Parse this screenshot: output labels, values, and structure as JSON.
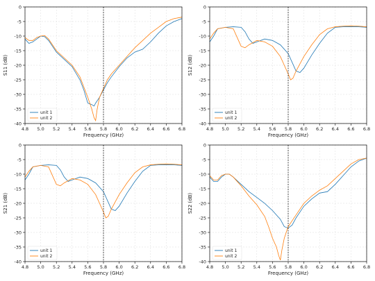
{
  "colors": {
    "unit1": "#1f77b4",
    "unit2": "#ff7f0e",
    "marker": "#000000"
  },
  "chart_data": [
    {
      "type": "line",
      "xlabel": "Frequency (GHz)",
      "ylabel": "S11 (dB)",
      "xlim": [
        4.8,
        6.8
      ],
      "ylim": [
        -40,
        0
      ],
      "xticks": [
        "4.8",
        "5.0",
        "5.2",
        "5.4",
        "5.6",
        "5.8",
        "6.0",
        "6.2",
        "6.4",
        "6.6",
        "6.8"
      ],
      "yticks": [
        "0",
        "-5",
        "-10",
        "-15",
        "-20",
        "-25",
        "-30",
        "-35",
        "-40"
      ],
      "grid": true,
      "legend": "bottom-left",
      "vline": 5.8,
      "series": [
        {
          "name": "unit 1",
          "x": [
            4.8,
            4.85,
            4.9,
            4.95,
            5.0,
            5.05,
            5.1,
            5.15,
            5.2,
            5.3,
            5.4,
            5.5,
            5.55,
            5.6,
            5.65,
            5.68,
            5.7,
            5.75,
            5.8,
            5.85,
            5.9,
            6.0,
            6.1,
            6.2,
            6.3,
            6.4,
            6.5,
            6.6,
            6.7,
            6.8
          ],
          "y": [
            -11,
            -12.5,
            -12,
            -11,
            -10,
            -10.2,
            -11.5,
            -13.5,
            -15.5,
            -18,
            -20.5,
            -25,
            -28.5,
            -33,
            -33.5,
            -34,
            -33,
            -31,
            -28.5,
            -26,
            -24,
            -20.5,
            -17.5,
            -15.5,
            -14.5,
            -12,
            -9,
            -6.5,
            -5,
            -4
          ]
        },
        {
          "name": "unit 2",
          "x": [
            4.8,
            4.85,
            4.9,
            4.95,
            5.0,
            5.05,
            5.1,
            5.15,
            5.2,
            5.3,
            5.4,
            5.5,
            5.55,
            5.6,
            5.65,
            5.68,
            5.7,
            5.72,
            5.75,
            5.8,
            5.85,
            5.9,
            6.0,
            6.1,
            6.2,
            6.3,
            6.4,
            6.5,
            6.6,
            6.7,
            6.8
          ],
          "y": [
            -10.5,
            -11.5,
            -11.5,
            -10.5,
            -10,
            -9.8,
            -11,
            -13,
            -15,
            -17.5,
            -20,
            -24,
            -27.5,
            -31,
            -35,
            -38,
            -39,
            -35,
            -31,
            -28,
            -25,
            -23,
            -20,
            -17,
            -14,
            -11.5,
            -9,
            -7,
            -5,
            -4,
            -3.5
          ]
        }
      ]
    },
    {
      "type": "line",
      "xlabel": "Frequency (GHz)",
      "ylabel": "S12 (dB)",
      "xlim": [
        4.8,
        6.8
      ],
      "ylim": [
        -40,
        0
      ],
      "xticks": [
        "4.8",
        "5.0",
        "5.2",
        "5.4",
        "5.6",
        "5.8",
        "6.0",
        "6.2",
        "6.4",
        "6.6",
        "6.8"
      ],
      "yticks": [
        "0",
        "-5",
        "-10",
        "-15",
        "-20",
        "-25",
        "-30",
        "-35",
        "-40"
      ],
      "grid": true,
      "legend": "bottom-left",
      "vline": 5.8,
      "series": [
        {
          "name": "unit 1",
          "x": [
            4.8,
            4.85,
            4.9,
            5.0,
            5.1,
            5.2,
            5.25,
            5.3,
            5.35,
            5.4,
            5.5,
            5.6,
            5.7,
            5.8,
            5.85,
            5.9,
            5.95,
            6.0,
            6.1,
            6.2,
            6.3,
            6.4,
            6.5,
            6.6,
            6.7,
            6.8
          ],
          "y": [
            -12,
            -10,
            -7.5,
            -7,
            -6.8,
            -7,
            -8.5,
            -11,
            -12.5,
            -12,
            -11,
            -11.5,
            -13,
            -16,
            -19,
            -22,
            -22.5,
            -21,
            -16.5,
            -12.5,
            -9,
            -7,
            -6.8,
            -6.8,
            -6.8,
            -7
          ]
        },
        {
          "name": "unit 2",
          "x": [
            4.8,
            4.85,
            4.9,
            5.0,
            5.1,
            5.15,
            5.2,
            5.25,
            5.3,
            5.4,
            5.5,
            5.6,
            5.7,
            5.75,
            5.8,
            5.83,
            5.86,
            5.9,
            6.0,
            6.1,
            6.2,
            6.3,
            6.4,
            6.5,
            6.6,
            6.7,
            6.8
          ],
          "y": [
            -11,
            -9,
            -7.5,
            -7,
            -7.5,
            -10.5,
            -13.5,
            -14,
            -13,
            -11.5,
            -12,
            -13.5,
            -17,
            -20,
            -23,
            -25,
            -24.5,
            -22,
            -17,
            -13,
            -9.5,
            -7.5,
            -6.8,
            -6.6,
            -6.5,
            -6.6,
            -6.8
          ]
        }
      ]
    },
    {
      "type": "line",
      "xlabel": "Frequency (GHz)",
      "ylabel": "S21 (dB)",
      "xlim": [
        4.8,
        6.8
      ],
      "ylim": [
        -40,
        0
      ],
      "xticks": [
        "4.8",
        "5.0",
        "5.2",
        "5.4",
        "5.6",
        "5.8",
        "6.0",
        "6.2",
        "6.4",
        "6.6",
        "6.8"
      ],
      "yticks": [
        "0",
        "-5",
        "-10",
        "-15",
        "-20",
        "-25",
        "-30",
        "-35",
        "-40"
      ],
      "grid": true,
      "legend": "bottom-left",
      "vline": 5.8,
      "series": [
        {
          "name": "unit 1",
          "x": [
            4.8,
            4.85,
            4.9,
            5.0,
            5.1,
            5.2,
            5.25,
            5.3,
            5.35,
            5.4,
            5.5,
            5.6,
            5.7,
            5.8,
            5.85,
            5.9,
            5.95,
            6.0,
            6.1,
            6.2,
            6.3,
            6.4,
            6.5,
            6.6,
            6.7,
            6.8
          ],
          "y": [
            -12,
            -10,
            -7.5,
            -7,
            -6.8,
            -7,
            -8.5,
            -11,
            -12.5,
            -12,
            -11,
            -11.5,
            -13,
            -16,
            -19,
            -22,
            -22.5,
            -21,
            -16.5,
            -12.5,
            -9,
            -7,
            -6.8,
            -6.8,
            -6.8,
            -7
          ]
        },
        {
          "name": "unit 2",
          "x": [
            4.8,
            4.85,
            4.9,
            5.0,
            5.1,
            5.15,
            5.2,
            5.25,
            5.3,
            5.4,
            5.5,
            5.6,
            5.7,
            5.75,
            5.8,
            5.83,
            5.86,
            5.9,
            6.0,
            6.1,
            6.2,
            6.3,
            6.4,
            6.5,
            6.6,
            6.7,
            6.8
          ],
          "y": [
            -11,
            -9,
            -7.5,
            -7,
            -7.5,
            -10.5,
            -13.5,
            -14,
            -13,
            -11.5,
            -12,
            -13.5,
            -17,
            -20,
            -23,
            -25,
            -24.5,
            -22,
            -17,
            -13,
            -9.5,
            -7.5,
            -6.8,
            -6.6,
            -6.5,
            -6.6,
            -6.8
          ]
        }
      ]
    },
    {
      "type": "line",
      "xlabel": "Frequency (GHz)",
      "ylabel": "S22 (dB)",
      "xlim": [
        4.8,
        6.8
      ],
      "ylim": [
        -40,
        0
      ],
      "xticks": [
        "4.8",
        "5.0",
        "5.2",
        "5.4",
        "5.6",
        "5.8",
        "6.0",
        "6.2",
        "6.4",
        "6.6",
        "6.8"
      ],
      "yticks": [
        "0",
        "-5",
        "-10",
        "-15",
        "-20",
        "-25",
        "-30",
        "-35",
        "-40"
      ],
      "grid": true,
      "legend": "bottom-left",
      "vline": 5.8,
      "series": [
        {
          "name": "unit 1",
          "x": [
            4.8,
            4.85,
            4.9,
            4.95,
            5.0,
            5.05,
            5.1,
            5.2,
            5.3,
            5.4,
            5.5,
            5.6,
            5.7,
            5.75,
            5.8,
            5.85,
            5.9,
            6.0,
            6.1,
            6.2,
            6.3,
            6.4,
            6.5,
            6.6,
            6.7,
            6.8
          ],
          "y": [
            -11,
            -12.5,
            -12.5,
            -11,
            -10,
            -10,
            -11,
            -13.5,
            -16,
            -18,
            -20,
            -22.5,
            -25.5,
            -28,
            -28.5,
            -27.5,
            -25,
            -21,
            -18.5,
            -16.5,
            -16,
            -13.5,
            -10.5,
            -7.5,
            -5.5,
            -4.5
          ]
        },
        {
          "name": "unit 2",
          "x": [
            4.8,
            4.85,
            4.9,
            4.95,
            5.0,
            5.05,
            5.1,
            5.2,
            5.3,
            5.4,
            5.5,
            5.55,
            5.6,
            5.65,
            5.68,
            5.7,
            5.72,
            5.75,
            5.8,
            5.85,
            5.9,
            6.0,
            6.1,
            6.2,
            6.3,
            6.4,
            6.5,
            6.6,
            6.7,
            6.8
          ],
          "y": [
            -10.5,
            -12,
            -12,
            -10.5,
            -10,
            -10,
            -11,
            -14,
            -17.5,
            -20.5,
            -24.5,
            -28,
            -32,
            -35,
            -38,
            -39.5,
            -36,
            -32,
            -28,
            -26,
            -24,
            -20,
            -17.5,
            -15.5,
            -14,
            -11.5,
            -9,
            -6.5,
            -5,
            -4.5
          ]
        }
      ]
    }
  ]
}
